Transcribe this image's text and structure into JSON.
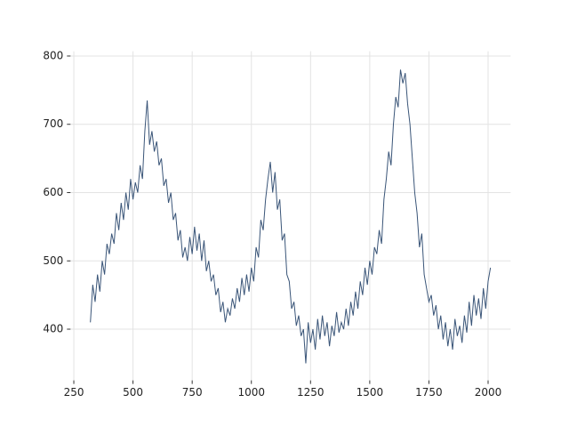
{
  "chart_data": {
    "type": "line",
    "x": [
      320,
      330,
      340,
      350,
      360,
      370,
      380,
      390,
      400,
      410,
      420,
      430,
      440,
      450,
      460,
      470,
      480,
      490,
      500,
      510,
      520,
      530,
      540,
      550,
      560,
      570,
      580,
      590,
      600,
      610,
      620,
      630,
      640,
      650,
      660,
      670,
      680,
      690,
      700,
      710,
      720,
      730,
      740,
      750,
      760,
      770,
      780,
      790,
      800,
      810,
      820,
      830,
      840,
      850,
      860,
      870,
      880,
      890,
      900,
      910,
      920,
      930,
      940,
      950,
      960,
      970,
      980,
      990,
      1000,
      1010,
      1020,
      1030,
      1040,
      1050,
      1060,
      1070,
      1080,
      1090,
      1100,
      1110,
      1120,
      1130,
      1140,
      1150,
      1160,
      1170,
      1180,
      1190,
      1200,
      1210,
      1220,
      1230,
      1240,
      1250,
      1260,
      1270,
      1280,
      1290,
      1300,
      1310,
      1320,
      1330,
      1340,
      1350,
      1360,
      1370,
      1380,
      1390,
      1400,
      1410,
      1420,
      1430,
      1440,
      1450,
      1460,
      1470,
      1480,
      1490,
      1500,
      1510,
      1520,
      1530,
      1540,
      1550,
      1560,
      1570,
      1580,
      1590,
      1600,
      1610,
      1620,
      1630,
      1640,
      1650,
      1660,
      1670,
      1680,
      1690,
      1700,
      1710,
      1720,
      1730,
      1740,
      1750,
      1760,
      1770,
      1780,
      1790,
      1800,
      1810,
      1820,
      1830,
      1840,
      1850,
      1860,
      1870,
      1880,
      1890,
      1900,
      1910,
      1920,
      1930,
      1940,
      1950,
      1960,
      1970,
      1980,
      1990,
      2000,
      2010
    ],
    "series": [
      {
        "color": "#3a5578",
        "values": [
          410,
          465,
          440,
          480,
          455,
          500,
          480,
          525,
          510,
          540,
          525,
          570,
          545,
          585,
          560,
          600,
          575,
          620,
          590,
          615,
          600,
          640,
          620,
          690,
          735,
          670,
          690,
          660,
          675,
          640,
          650,
          610,
          620,
          585,
          600,
          560,
          570,
          530,
          545,
          505,
          520,
          500,
          535,
          510,
          550,
          515,
          540,
          500,
          530,
          485,
          500,
          470,
          480,
          450,
          460,
          425,
          440,
          410,
          430,
          420,
          445,
          430,
          460,
          440,
          475,
          450,
          480,
          455,
          490,
          470,
          520,
          505,
          560,
          545,
          590,
          620,
          645,
          600,
          630,
          575,
          590,
          530,
          540,
          480,
          470,
          430,
          440,
          405,
          420,
          390,
          400,
          350,
          410,
          380,
          400,
          370,
          415,
          385,
          420,
          390,
          410,
          375,
          405,
          390,
          425,
          395,
          410,
          400,
          430,
          405,
          440,
          420,
          455,
          430,
          470,
          450,
          490,
          465,
          500,
          480,
          520,
          510,
          545,
          525,
          590,
          620,
          660,
          640,
          700,
          740,
          725,
          780,
          760,
          775,
          730,
          700,
          650,
          600,
          570,
          520,
          540,
          480,
          460,
          440,
          450,
          420,
          435,
          400,
          420,
          385,
          410,
          375,
          400,
          370,
          415,
          390,
          405,
          380,
          420,
          395,
          440,
          405,
          450,
          420,
          445,
          415,
          460,
          430,
          470,
          490
        ]
      }
    ],
    "xlim": [
      236,
      2095
    ],
    "ylim": [
      325,
      807
    ],
    "xticks": [
      250,
      500,
      750,
      1000,
      1250,
      1500,
      1750,
      2000
    ],
    "yticks": [
      400,
      500,
      600,
      700,
      800
    ],
    "grid": true
  }
}
